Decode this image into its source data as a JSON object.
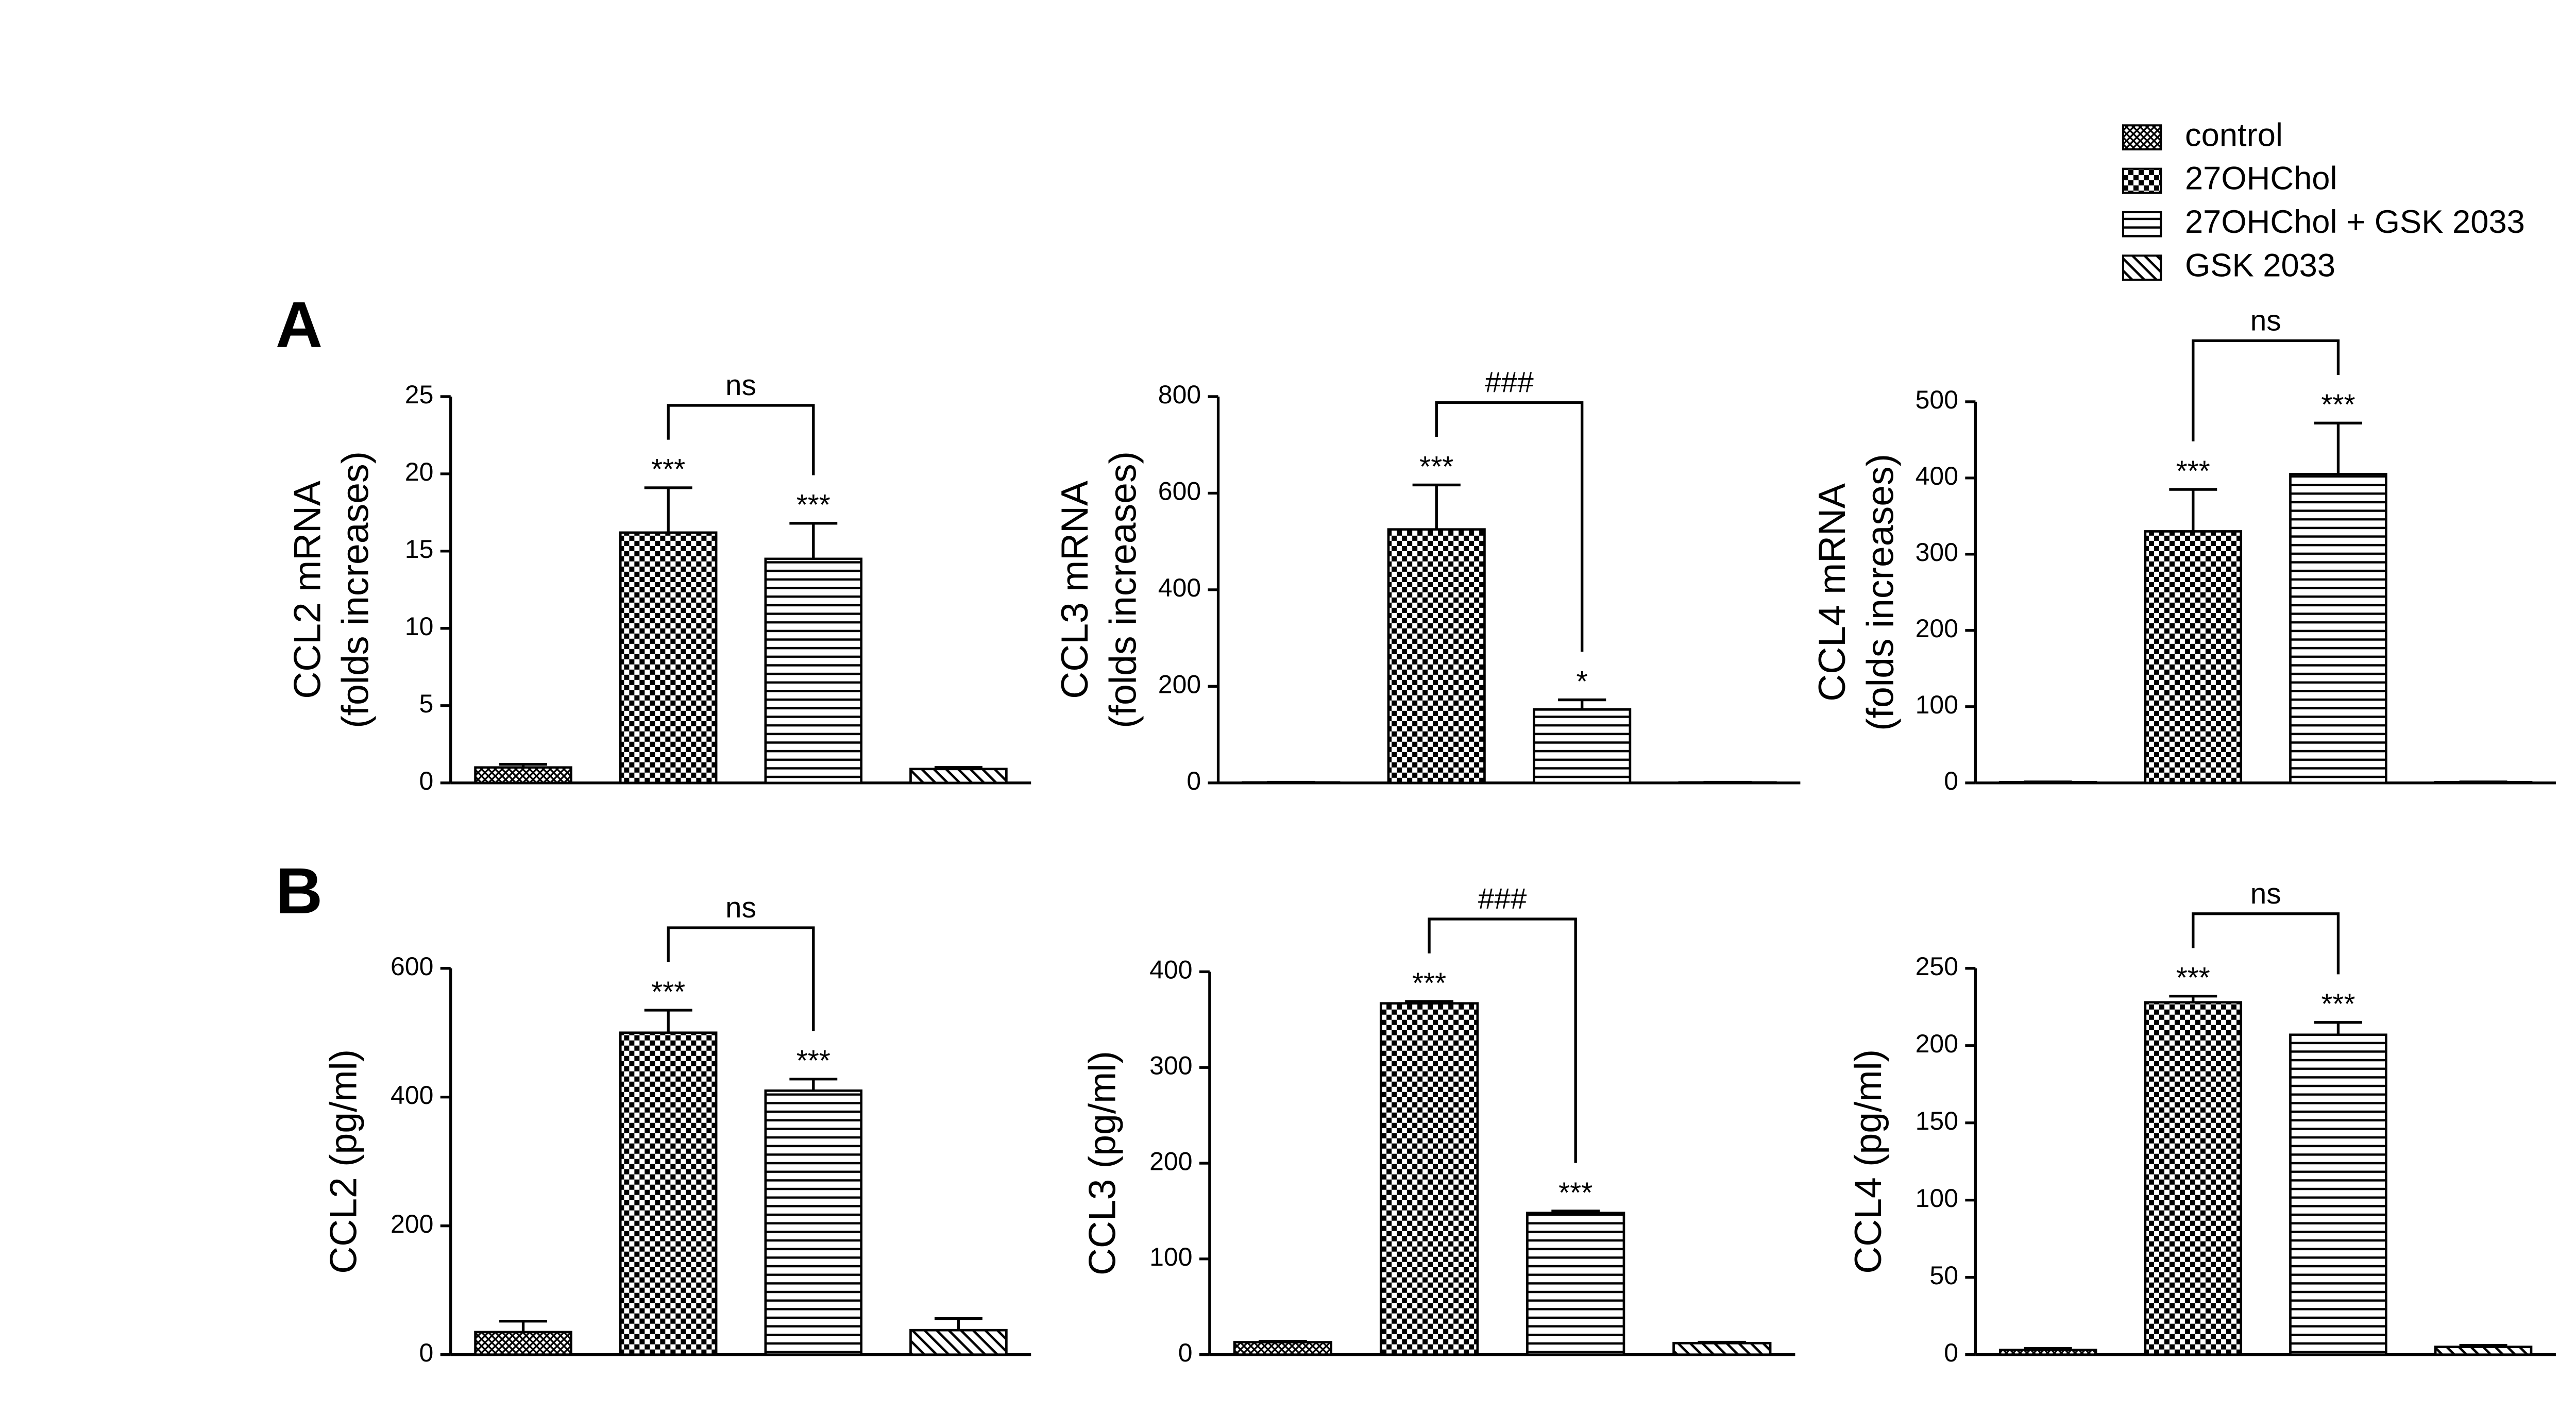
{
  "panel_labels": [
    "A",
    "B"
  ],
  "legend": {
    "entries": [
      "control",
      "27OHChol",
      "27OHChol + GSK 2033",
      "GSK 2033"
    ],
    "patterns": [
      "crosshatch",
      "checker",
      "hlines",
      "dlines"
    ]
  },
  "chart_data": [
    {
      "type": "bar",
      "ylabel": [
        "CCL2 mRNA",
        "(folds increases)"
      ],
      "values": [
        1,
        16.2,
        14.5,
        0.9
      ],
      "errors": [
        0.2,
        2.9,
        2.3,
        0.1
      ],
      "annotations": [
        null,
        "***",
        "***",
        null
      ],
      "comparison": {
        "bars": [
          1,
          2
        ],
        "label": "ns"
      },
      "ylim": [
        0,
        25
      ],
      "yticks": [
        0,
        5,
        10,
        15,
        20,
        25
      ]
    },
    {
      "type": "bar",
      "ylabel": [
        "CCL3 mRNA",
        "(folds increases)"
      ],
      "values": [
        1,
        525,
        152,
        1
      ],
      "errors": [
        0.3,
        92,
        20,
        0.3
      ],
      "annotations": [
        null,
        "***",
        "*",
        null
      ],
      "comparison": {
        "bars": [
          1,
          2
        ],
        "label": "###"
      },
      "ylim": [
        0,
        800
      ],
      "yticks": [
        0,
        200,
        400,
        600,
        800
      ]
    },
    {
      "type": "bar",
      "ylabel": [
        "CCL4 mRNA",
        "(folds increases)"
      ],
      "values": [
        1,
        330,
        405,
        1
      ],
      "errors": [
        0.3,
        55,
        67,
        0.3
      ],
      "annotations": [
        null,
        "***",
        "***",
        null
      ],
      "comparison": {
        "bars": [
          1,
          2
        ],
        "label": "ns"
      },
      "ylim": [
        0,
        500
      ],
      "yticks": [
        0,
        100,
        200,
        300,
        400,
        500
      ]
    },
    {
      "type": "bar",
      "ylabel": [
        "CCL2 (pg/ml)"
      ],
      "values": [
        35,
        500,
        410,
        38
      ],
      "errors": [
        17,
        35,
        18,
        18
      ],
      "annotations": [
        null,
        "***",
        "***",
        null
      ],
      "comparison": {
        "bars": [
          1,
          2
        ],
        "label": "ns"
      },
      "ylim": [
        0,
        600
      ],
      "yticks": [
        0,
        200,
        400,
        600
      ]
    },
    {
      "type": "bar",
      "ylabel": [
        "CCL3 (pg/ml)"
      ],
      "values": [
        13,
        367,
        148,
        12
      ],
      "errors": [
        1,
        2,
        2,
        1
      ],
      "annotations": [
        null,
        "***",
        "***",
        null
      ],
      "comparison": {
        "bars": [
          1,
          2
        ],
        "label": "###"
      },
      "ylim": [
        0,
        400
      ],
      "yticks": [
        0,
        100,
        200,
        300,
        400
      ]
    },
    {
      "type": "bar",
      "ylabel": [
        "CCL4 (pg/ml)"
      ],
      "values": [
        3,
        228,
        207,
        5
      ],
      "errors": [
        1,
        4,
        8,
        1
      ],
      "annotations": [
        null,
        "***",
        "***",
        null
      ],
      "comparison": {
        "bars": [
          1,
          2
        ],
        "label": "ns"
      },
      "ylim": [
        0,
        250
      ],
      "yticks": [
        0,
        50,
        100,
        150,
        200,
        250
      ]
    }
  ]
}
